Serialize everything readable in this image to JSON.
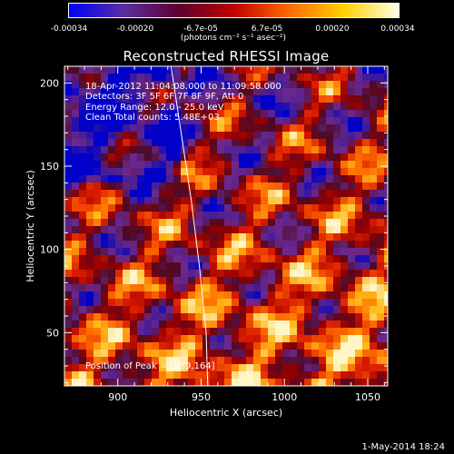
{
  "colorbar": {
    "ticks": [
      "-0.00034",
      "-0.00020",
      "-6.7e-05",
      "6.7e-05",
      "0.00020",
      "0.00034"
    ],
    "tick_values": [
      -0.00034,
      -0.0002,
      -6.7e-05,
      6.7e-05,
      0.0002,
      0.00034
    ],
    "units": "(photons cm⁻² s⁻¹ asec⁻²)",
    "colors": [
      "#0000ff",
      "#5a2da0",
      "#600030",
      "#c00000",
      "#ff6a00",
      "#ffd000",
      "#ffffe8"
    ]
  },
  "annotations": {
    "time_range": "18-Apr-2012 11:04:08.000 to 11:09:58.000",
    "detectors": "Detectors: 3F 5F 6F 7F 8F 9F, Att 0",
    "energy": "Energy Range: 12.0 - 25.0 keV",
    "clean": "Clean    Total counts: 5.48E+03",
    "peak": "Position of Peak = [889,164]"
  },
  "footer": {
    "date": "1-May-2014 18:24"
  },
  "chart_data": {
    "type": "heatmap",
    "title": "Reconstructed RHESSI Image",
    "xlabel": "Heliocentric X (arcsec)",
    "ylabel": "Heliocentric Y (arcsec)",
    "xlim": [
      868,
      1062
    ],
    "ylim": [
      18,
      210
    ],
    "x_ticks": [
      900,
      950,
      1000,
      1050
    ],
    "y_ticks": [
      50,
      100,
      150,
      200
    ],
    "value_range": [
      -0.00034,
      0.00034
    ],
    "limb": {
      "x": [
        932,
        938,
        944,
        949,
        953,
        954
      ],
      "y": [
        210,
        170,
        130,
        90,
        50,
        18
      ]
    }
  }
}
